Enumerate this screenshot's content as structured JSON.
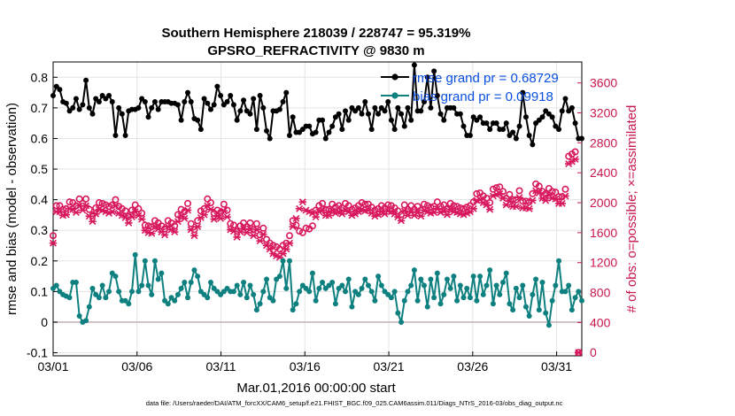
{
  "chart_data": {
    "type": "line",
    "title": "Southern Hemisphere 218039 / 228747 = 95.319%",
    "subtitle": "GPSRO_REFRACTIVITY @ 9830 m",
    "xlabel": "Mar.01,2016 00:00:00 start",
    "ylabel": "rmse and bias (model - observation)",
    "y2label": "# of obs: o=possible; ×=assimilated",
    "footer": "data file: /Users/raeder/DAI/ATM_forcXX/CAM6_setup/f.e21.FHIST_BGC.f09_025.CAM6assim.011/Diags_NTrS_2016-03/obs_diag_output.nc",
    "grid": true,
    "legend_position": "top-right",
    "xlim": [
      0,
      31.5
    ],
    "ylim": [
      -0.11,
      0.85
    ],
    "y2lim": [
      -45,
      3880
    ],
    "x_ticks": [
      {
        "x": 0,
        "label": "03/01"
      },
      {
        "x": 5,
        "label": "03/06"
      },
      {
        "x": 10,
        "label": "03/11"
      },
      {
        "x": 15,
        "label": "03/16"
      },
      {
        "x": 20,
        "label": "03/21"
      },
      {
        "x": 25,
        "label": "03/26"
      },
      {
        "x": 30,
        "label": "03/31"
      }
    ],
    "y_ticks": [
      -0.1,
      0,
      0.1,
      0.2,
      0.3,
      0.4,
      0.5,
      0.6,
      0.7,
      0.8
    ],
    "y2_ticks": [
      0,
      400,
      800,
      1200,
      1600,
      2000,
      2400,
      2800,
      3200,
      3600
    ],
    "zero_line": 0,
    "colors": {
      "rmse": "#000000",
      "bias": "#0f8080",
      "obs": "#d8185e",
      "legend_text": "#0a4fe0",
      "zero_line": "#c8b4bc"
    },
    "series": [
      {
        "name": "rmse grand pr = 0.68729",
        "legend_label": "rmse grand pr = 0.68729",
        "axis": "left",
        "values": [
          0.74,
          0.77,
          0.76,
          0.72,
          0.715,
          0.69,
          0.7,
          0.73,
          0.695,
          0.71,
          0.79,
          0.7,
          0.68,
          0.73,
          0.72,
          0.74,
          0.73,
          0.74,
          0.72,
          0.61,
          0.7,
          0.68,
          0.61,
          0.69,
          0.695,
          0.695,
          0.7,
          0.73,
          0.72,
          0.67,
          0.7,
          0.72,
          0.695,
          0.72,
          0.72,
          0.72,
          0.715,
          0.715,
          0.71,
          0.66,
          0.72,
          0.75,
          0.72,
          0.665,
          0.66,
          0.63,
          0.73,
          0.715,
          0.695,
          0.71,
          0.77,
          0.74,
          0.71,
          0.72,
          0.74,
          0.71,
          0.66,
          0.69,
          0.725,
          0.69,
          0.68,
          0.73,
          0.63,
          0.74,
          0.7,
          0.625,
          0.6,
          0.69,
          0.69,
          0.695,
          0.72,
          0.75,
          0.61,
          0.67,
          0.62,
          0.62,
          0.63,
          0.64,
          0.64,
          0.615,
          0.62,
          0.66,
          0.66,
          0.6,
          0.62,
          0.64,
          0.67,
          0.68,
          0.63,
          0.69,
          0.66,
          0.7,
          0.69,
          0.7,
          0.68,
          0.72,
          0.68,
          0.63,
          0.7,
          0.68,
          0.7,
          0.69,
          0.72,
          0.66,
          0.63,
          0.7,
          0.68,
          0.64,
          0.7,
          0.66,
          0.84,
          0.69,
          0.69,
          0.72,
          0.8,
          0.7,
          0.82,
          0.74,
          0.68,
          0.66,
          0.7,
          0.7,
          0.7,
          0.68,
          0.68,
          0.64,
          0.61,
          0.61,
          0.67,
          0.66,
          0.67,
          0.65,
          0.65,
          0.63,
          0.65,
          0.65,
          0.63,
          0.63,
          0.65,
          0.61,
          0.62,
          0.6,
          0.64,
          0.75,
          0.67,
          0.61,
          0.58,
          0.65,
          0.66,
          0.67,
          0.69,
          0.68,
          0.67,
          0.64,
          0.63,
          0.69,
          0.73,
          0.69,
          0.7,
          0.65,
          0.6,
          0.6
        ]
      },
      {
        "name": "bias grand pr = 0.09918",
        "legend_label": "bias grand pr = 0.09918",
        "axis": "left",
        "values": [
          0.11,
          0.12,
          0.1,
          0.09,
          0.085,
          0.08,
          0.13,
          0.13,
          0.02,
          0.0,
          0.005,
          0.05,
          0.11,
          0.09,
          0.08,
          0.12,
          0.08,
          0.1,
          0.16,
          0.15,
          0.1,
          0.07,
          0.07,
          0.06,
          0.1,
          0.22,
          0.1,
          0.12,
          0.2,
          0.12,
          0.09,
          0.2,
          0.14,
          0.16,
          0.07,
          0.06,
          0.08,
          0.07,
          0.09,
          0.11,
          0.13,
          0.08,
          0.13,
          0.17,
          0.15,
          0.1,
          0.09,
          0.08,
          0.13,
          0.11,
          0.1,
          0.09,
          0.1,
          0.11,
          0.1,
          0.1,
          0.12,
          0.09,
          0.13,
          0.08,
          0.12,
          0.09,
          0.04,
          0.06,
          0.1,
          0.14,
          0.08,
          0.07,
          0.14,
          0.15,
          0.2,
          0.11,
          0.2,
          0.04,
          0.06,
          0.1,
          0.12,
          0.11,
          0.1,
          0.16,
          0.07,
          0.11,
          0.13,
          0.11,
          0.12,
          0.13,
          0.06,
          0.11,
          0.12,
          0.1,
          0.14,
          0.05,
          0.1,
          0.09,
          0.11,
          0.14,
          0.12,
          0.1,
          0.07,
          0.15,
          0.12,
          0.1,
          0.09,
          0.08,
          0.1,
          0.03,
          0.0,
          0.07,
          0.1,
          0.12,
          0.17,
          0.07,
          0.14,
          0.12,
          0.05,
          0.14,
          0.08,
          0.16,
          0.06,
          0.09,
          0.14,
          0.11,
          0.15,
          0.07,
          0.12,
          0.08,
          0.11,
          0.08,
          0.15,
          0.07,
          0.15,
          0.09,
          0.12,
          0.17,
          0.06,
          0.12,
          0.09,
          0.13,
          0.16,
          0.06,
          0.04,
          0.11,
          0.08,
          0.12,
          0.05,
          0.02,
          0.09,
          0.14,
          0.04,
          0.13,
          0.03,
          -0.01,
          0.07,
          0.12,
          0.2,
          0.1,
          0.1,
          0.12,
          0.04,
          0.08,
          0.1,
          0.07
        ]
      },
      {
        "name": "obs possible",
        "axis": "right",
        "marker": "o",
        "values": [
          1560,
          1960,
          1960,
          1910,
          1920,
          2010,
          2000,
          1960,
          2050,
          1990,
          2050,
          1910,
          1830,
          1930,
          2000,
          1990,
          1970,
          1950,
          1970,
          2040,
          1950,
          1920,
          1890,
          1820,
          1900,
          1970,
          1920,
          1860,
          1700,
          1690,
          1680,
          1760,
          1730,
          1690,
          1650,
          1760,
          1730,
          1690,
          1840,
          1910,
          1880,
          1990,
          1720,
          1640,
          1760,
          1890,
          1920,
          2050,
          2000,
          1860,
          1900,
          1870,
          1980,
          1900,
          1720,
          1700,
          1620,
          1690,
          1730,
          1680,
          1730,
          1640,
          1720,
          1570,
          1660,
          1510,
          1460,
          1430,
          1410,
          1380,
          1430,
          1460,
          1560,
          1760,
          1700,
          1620,
          1600,
          1660,
          1650,
          1690,
          1900,
          1960,
          1990,
          1910,
          1910,
          1980,
          1940,
          1960,
          1930,
          1990,
          1960,
          1910,
          1930,
          1960,
          2000,
          1980,
          1980,
          1940,
          1900,
          1920,
          1960,
          1930,
          1970,
          1960,
          1930,
          1890,
          1840,
          1970,
          1910,
          1960,
          1910,
          1950,
          1900,
          1980,
          1960,
          1940,
          1950,
          2010,
          1950,
          1970,
          1920,
          1990,
          1960,
          1950,
          1930,
          1920,
          1940,
          1960,
          2010,
          2120,
          2130,
          2090,
          2060,
          2000,
          2180,
          2200,
          2210,
          2150,
          2060,
          2110,
          2040,
          2040,
          2160,
          2020,
          2020,
          2010,
          2120,
          2250,
          2220,
          2150,
          2120,
          2190,
          2150,
          2140,
          2080,
          2080,
          2180,
          2620,
          2650,
          2680,
          0
        ]
      },
      {
        "name": "obs assimilated",
        "axis": "right",
        "marker": "x",
        "values": [
          1460,
          1880,
          1880,
          1830,
          1840,
          1920,
          1910,
          1870,
          1960,
          1900,
          1960,
          1820,
          1750,
          1850,
          1910,
          1900,
          1880,
          1860,
          1880,
          1960,
          1860,
          1830,
          1800,
          1730,
          1810,
          1880,
          1830,
          1780,
          1630,
          1600,
          1590,
          1680,
          1650,
          1610,
          1570,
          1680,
          1640,
          1610,
          1750,
          1820,
          1790,
          1900,
          1640,
          1560,
          1680,
          1800,
          1840,
          1960,
          1910,
          1780,
          1820,
          1790,
          1890,
          1810,
          1640,
          1620,
          1540,
          1610,
          1650,
          1600,
          1650,
          1560,
          1640,
          1490,
          1580,
          1430,
          1380,
          1320,
          1290,
          1270,
          1320,
          1380,
          1460,
          1680,
          1790,
          1920,
          2010,
          1900,
          1880,
          1860,
          1810,
          1880,
          1900,
          1830,
          1830,
          1890,
          1860,
          1880,
          1850,
          1900,
          1880,
          1830,
          1850,
          1880,
          1910,
          1890,
          1900,
          1860,
          1820,
          1840,
          1880,
          1850,
          1890,
          1880,
          1850,
          1810,
          1760,
          1890,
          1830,
          1880,
          1830,
          1870,
          1820,
          1900,
          1880,
          1860,
          1870,
          1920,
          1870,
          1890,
          1840,
          1910,
          1880,
          1870,
          1850,
          1840,
          1860,
          1880,
          1920,
          2030,
          2040,
          2000,
          1970,
          1910,
          2090,
          2110,
          2120,
          2060,
          1970,
          2020,
          1950,
          1950,
          2070,
          1930,
          1930,
          1920,
          2030,
          2160,
          2130,
          2060,
          2030,
          2100,
          2060,
          2050,
          1990,
          1990,
          2090,
          2520,
          2550,
          2580,
          0
        ]
      }
    ]
  }
}
